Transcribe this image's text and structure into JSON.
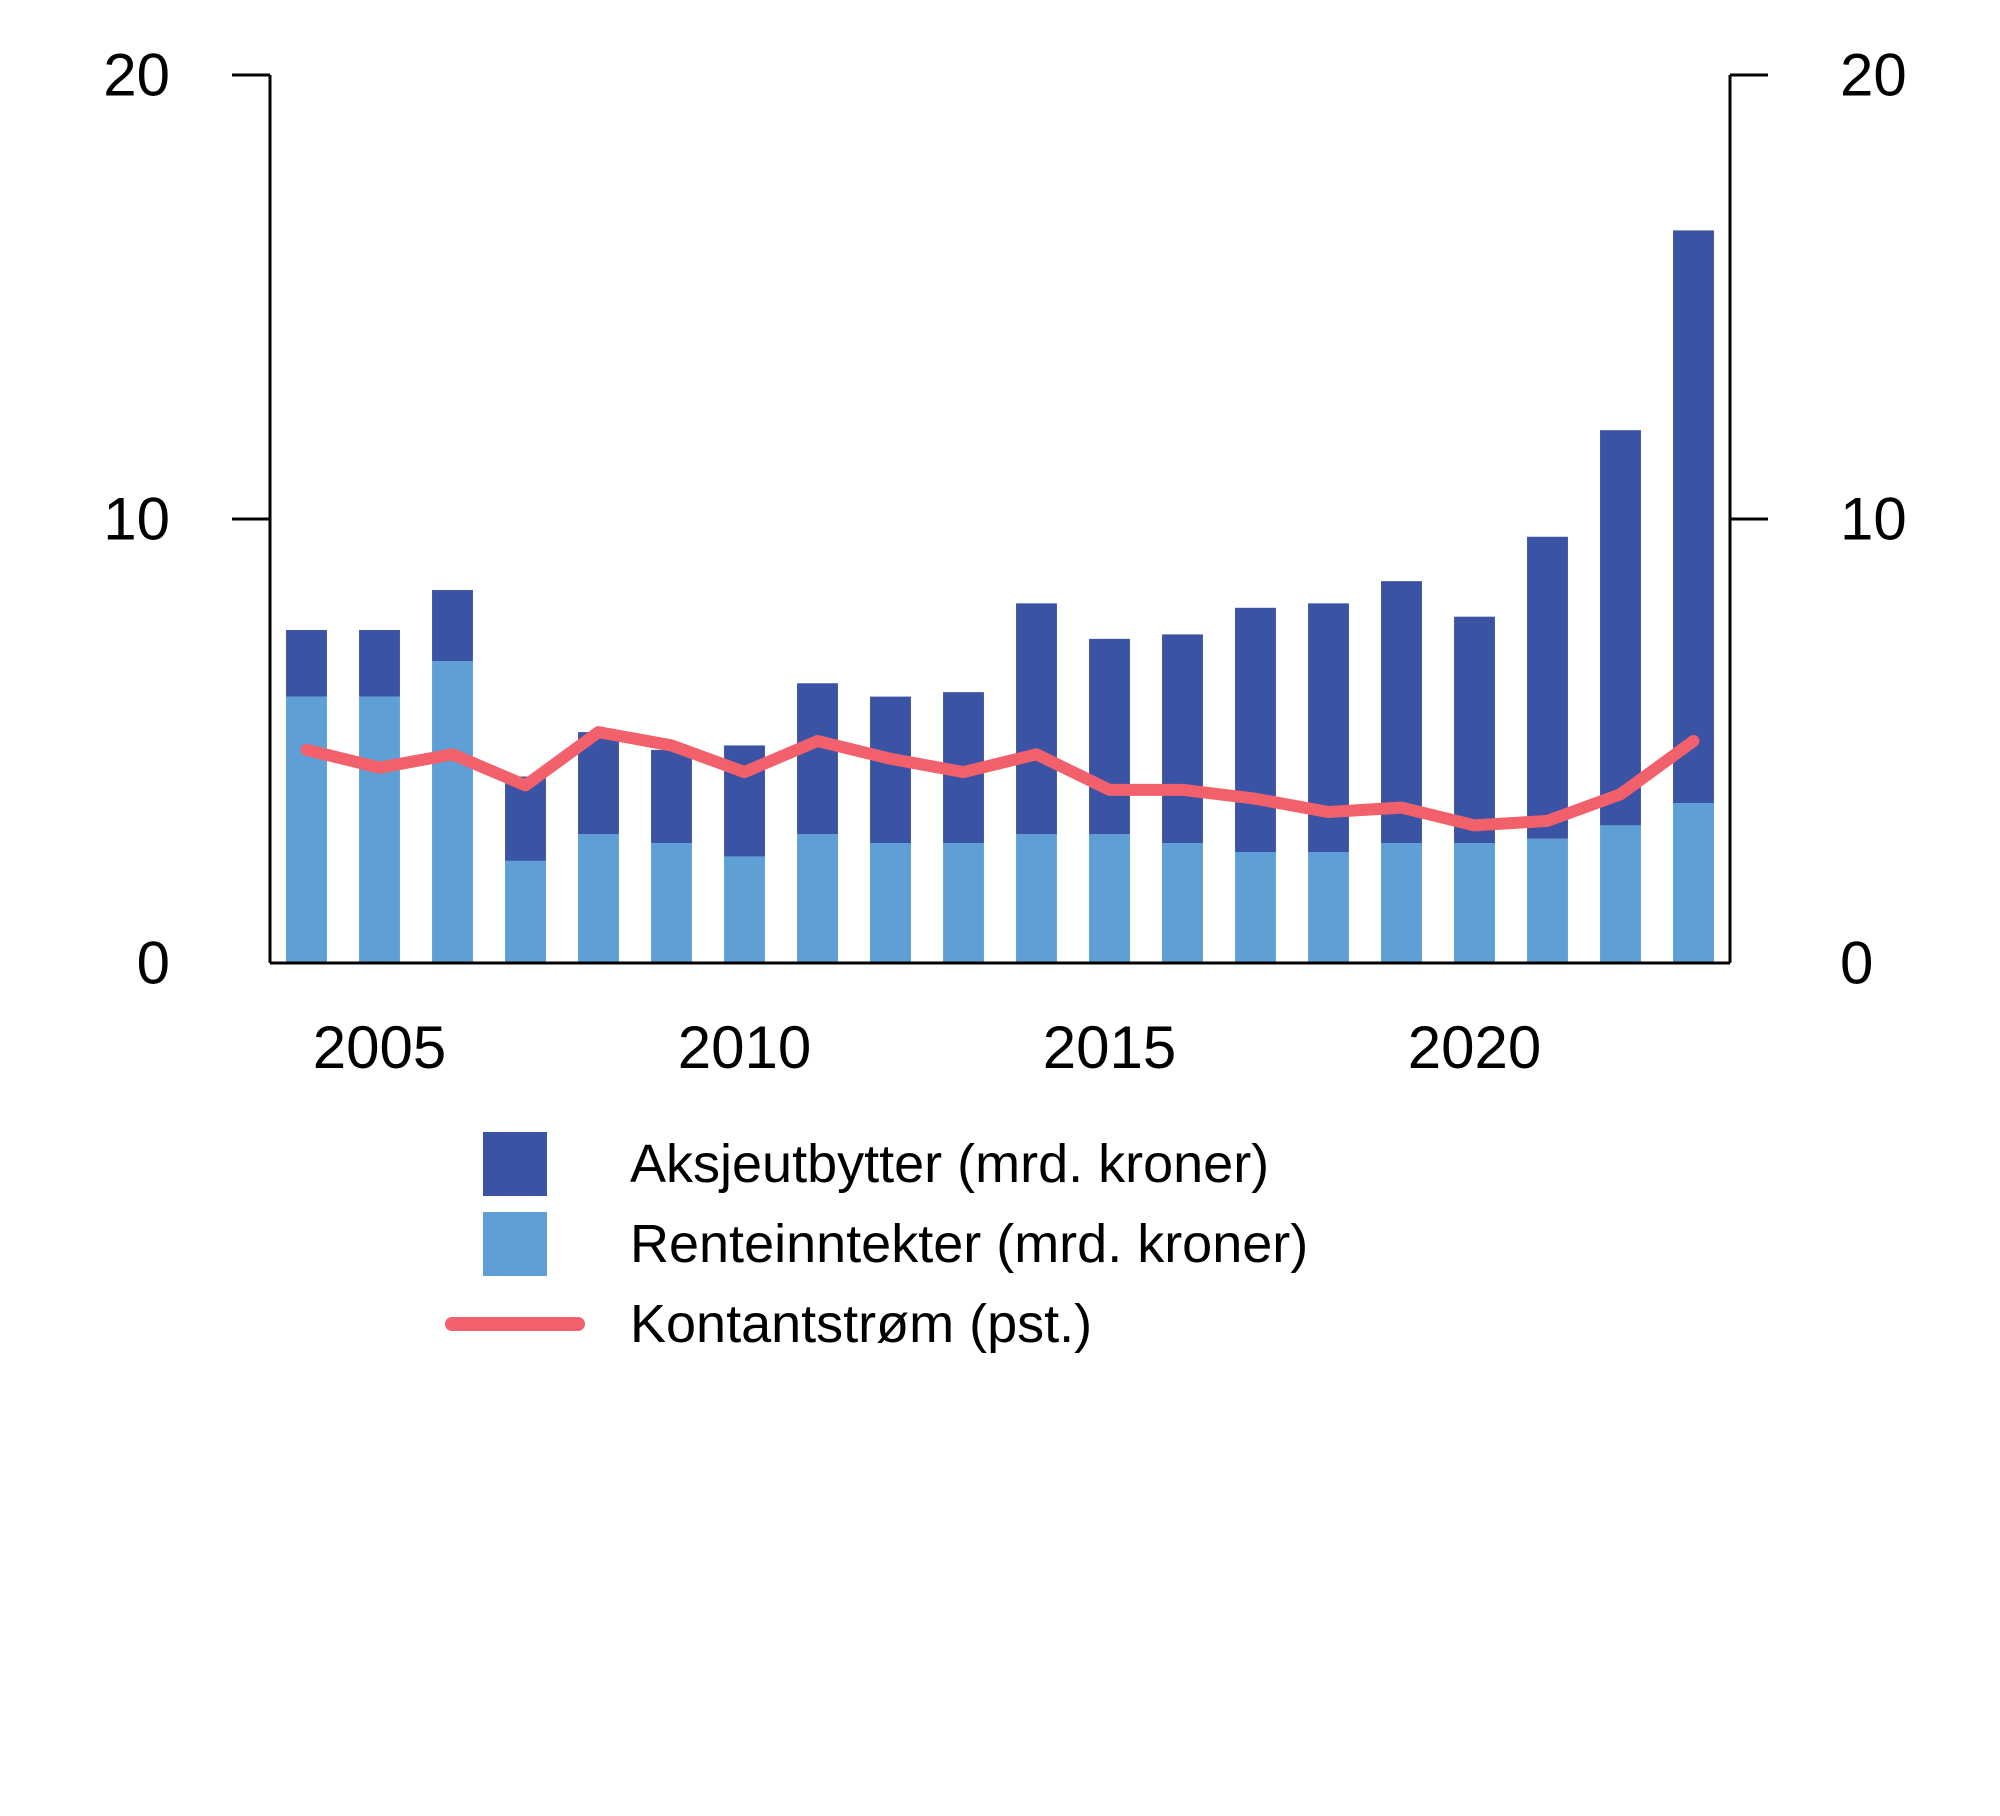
{
  "chart_data": {
    "type": "bar",
    "subtype": "stacked-bars-with-line-overlay",
    "title": "",
    "xlabel": "",
    "ylabel": "",
    "x": [
      2004,
      2005,
      2006,
      2007,
      2008,
      2009,
      2010,
      2011,
      2012,
      2013,
      2014,
      2015,
      2016,
      2017,
      2018,
      2019,
      2020,
      2021,
      2022,
      2023
    ],
    "x_tick_years": [
      2005,
      2010,
      2015,
      2020
    ],
    "x_tick_labels": [
      "2005",
      "2010",
      "2015",
      "2020"
    ],
    "ylim": [
      0,
      20
    ],
    "yticks": [
      0,
      10,
      20
    ],
    "ytick_labels_left": [
      "0",
      "10",
      "20"
    ],
    "ytick_labels_right": [
      "0",
      "10",
      "20"
    ],
    "grid": false,
    "legend_position": "bottom",
    "axis_color": "#000000",
    "background": "#FFFFFF",
    "series": [
      {
        "name": "Aksjeutbytter (mrd. kroner)",
        "type": "bar",
        "role": "stack-top",
        "color": "#3A53A4",
        "values": [
          1.5,
          1.5,
          1.6,
          1.9,
          2.3,
          2.1,
          2.5,
          3.4,
          3.3,
          3.4,
          5.2,
          4.4,
          4.7,
          5.5,
          5.6,
          5.9,
          5.1,
          6.8,
          8.9,
          12.9
        ]
      },
      {
        "name": "Renteinntekter (mrd. kroner)",
        "type": "bar",
        "role": "stack-bottom",
        "color": "#5E9FD6",
        "values": [
          6.0,
          6.0,
          6.8,
          2.3,
          2.9,
          2.7,
          2.4,
          2.9,
          2.7,
          2.7,
          2.9,
          2.9,
          2.7,
          2.5,
          2.5,
          2.7,
          2.7,
          2.8,
          3.1,
          3.6
        ]
      },
      {
        "name": "Kontantstrøm (pst.)",
        "type": "line",
        "color": "#F2606B",
        "values": [
          4.8,
          4.4,
          4.7,
          4.0,
          5.2,
          4.9,
          4.3,
          5.0,
          4.6,
          4.3,
          4.7,
          3.9,
          3.9,
          3.7,
          3.4,
          3.5,
          3.1,
          3.2,
          3.8,
          5.0
        ]
      }
    ]
  }
}
